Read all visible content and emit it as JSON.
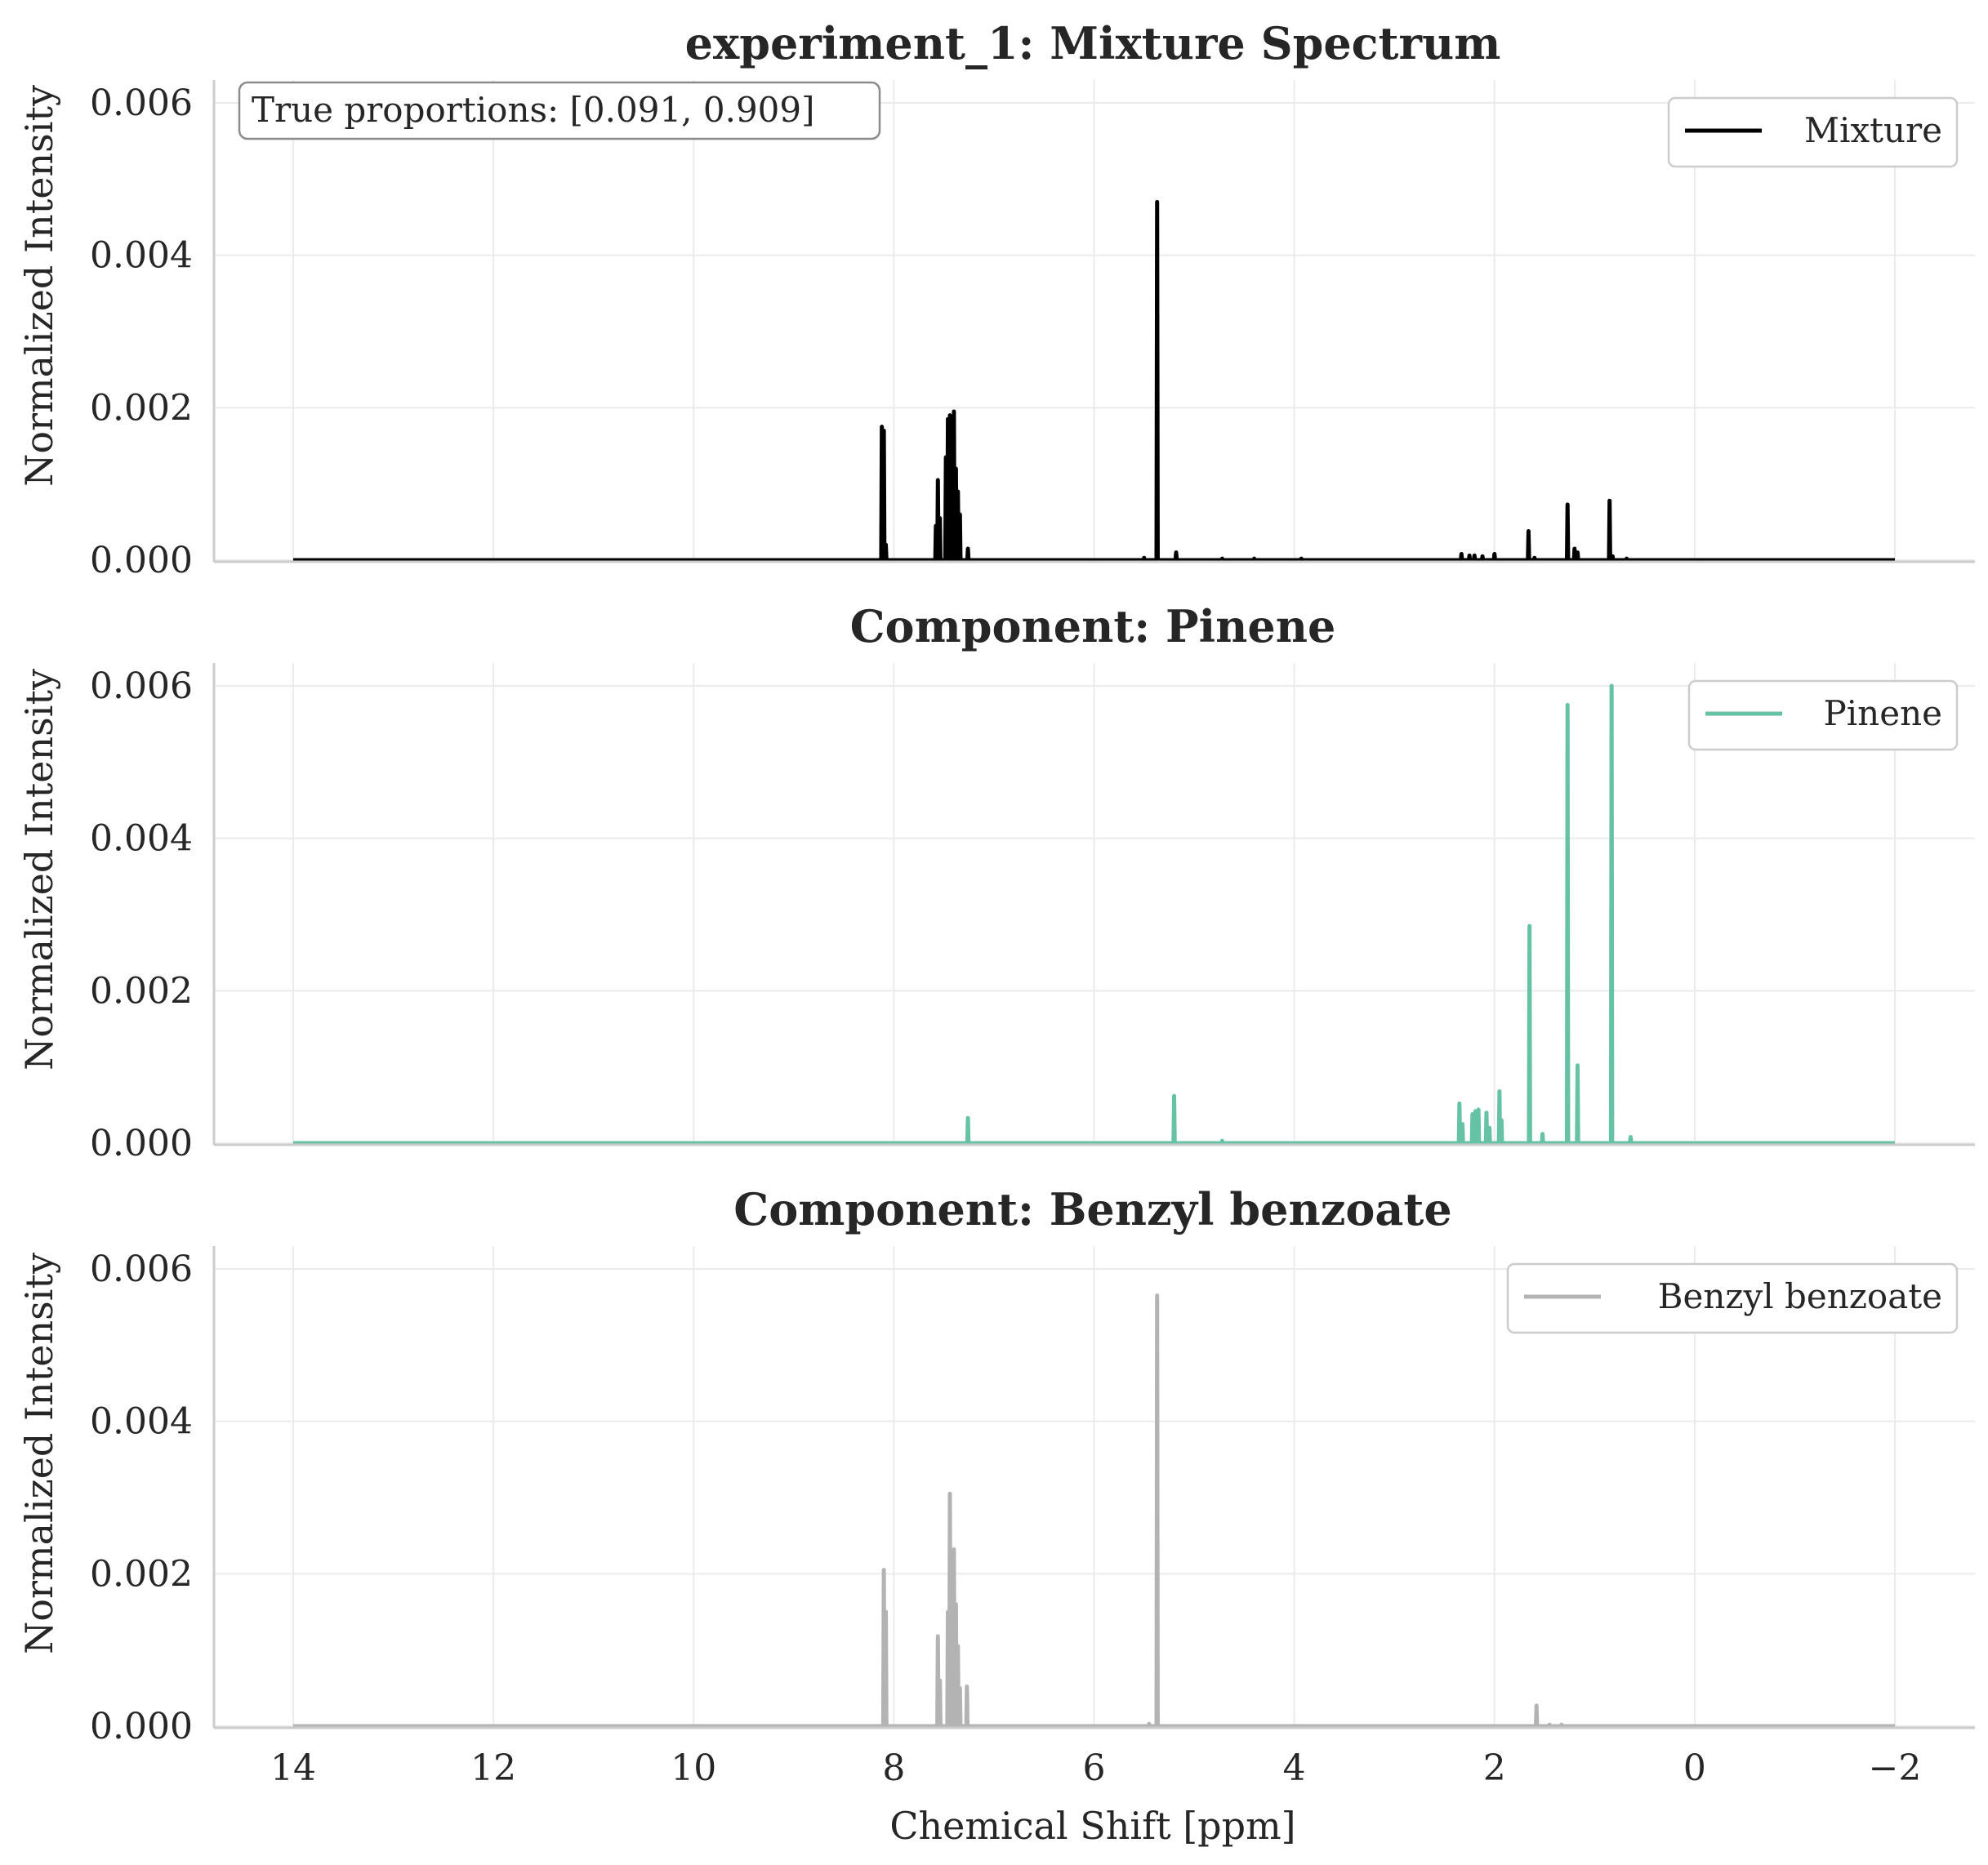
{
  "chart_data": [
    {
      "type": "line",
      "title": "experiment_1: Mixture Spectrum",
      "xlabel": "",
      "ylabel": "Normalized Intensity",
      "xlim": [
        14,
        -2
      ],
      "ylim": [
        0,
        0.0063
      ],
      "yticks": [
        "0.000",
        "0.002",
        "0.004",
        "0.006"
      ],
      "grid": true,
      "legend_position": "upper right",
      "annotation": "True proportions: [0.091, 0.909]",
      "series": [
        {
          "name": "Mixture",
          "color": "#000000",
          "peaks": [
            [
              8.12,
              0.00175
            ],
            [
              8.1,
              0.0017
            ],
            [
              8.08,
              0.0002
            ],
            [
              7.58,
              0.00045
            ],
            [
              7.56,
              0.00105
            ],
            [
              7.54,
              0.00055
            ],
            [
              7.48,
              0.00135
            ],
            [
              7.46,
              0.00185
            ],
            [
              7.44,
              0.0019
            ],
            [
              7.42,
              0.0017
            ],
            [
              7.4,
              0.00195
            ],
            [
              7.38,
              0.0012
            ],
            [
              7.36,
              0.0009
            ],
            [
              7.34,
              0.0006
            ],
            [
              7.26,
              0.00015
            ],
            [
              5.5,
              3e-05
            ],
            [
              5.37,
              0.0047
            ],
            [
              5.18,
              0.0001
            ],
            [
              4.72,
              2e-05
            ],
            [
              4.4,
              2e-05
            ],
            [
              3.93,
              2e-05
            ],
            [
              2.33,
              8e-05
            ],
            [
              2.25,
              6e-05
            ],
            [
              2.2,
              6e-05
            ],
            [
              2.12,
              5e-05
            ],
            [
              2.0,
              8e-05
            ],
            [
              1.66,
              0.00038
            ],
            [
              1.6,
              3e-05
            ],
            [
              1.27,
              0.00073
            ],
            [
              1.2,
              0.00015
            ],
            [
              1.17,
              0.0001
            ],
            [
              0.85,
              0.00078
            ],
            [
              0.82,
              5e-05
            ],
            [
              0.68,
              2e-05
            ]
          ]
        }
      ]
    },
    {
      "type": "line",
      "title": "Component: Pinene",
      "xlabel": "",
      "ylabel": "Normalized Intensity",
      "xlim": [
        14,
        -2
      ],
      "ylim": [
        0,
        0.0063
      ],
      "yticks": [
        "0.000",
        "0.002",
        "0.004",
        "0.006"
      ],
      "grid": true,
      "legend_position": "upper right",
      "series": [
        {
          "name": "Pinene",
          "color": "#66c2a5",
          "peaks": [
            [
              7.26,
              0.00033
            ],
            [
              5.2,
              0.00062
            ],
            [
              4.72,
              3e-05
            ],
            [
              2.35,
              0.00052
            ],
            [
              2.32,
              0.00025
            ],
            [
              2.22,
              0.00038
            ],
            [
              2.19,
              0.00042
            ],
            [
              2.16,
              0.00044
            ],
            [
              2.08,
              0.0004
            ],
            [
              2.05,
              0.0002
            ],
            [
              1.95,
              0.00068
            ],
            [
              1.93,
              0.0003
            ],
            [
              1.65,
              0.00285
            ],
            [
              1.52,
              0.00012
            ],
            [
              1.27,
              0.00575
            ],
            [
              1.17,
              0.00102
            ],
            [
              0.83,
              0.006
            ],
            [
              0.64,
              8e-05
            ]
          ]
        }
      ]
    },
    {
      "type": "line",
      "title": "Component: Benzyl benzoate",
      "xlabel": "Chemical Shift [ppm]",
      "ylabel": "Normalized Intensity",
      "xlim": [
        14,
        -2
      ],
      "ylim": [
        0,
        0.0063
      ],
      "xticks": [
        "14",
        "12",
        "10",
        "8",
        "6",
        "4",
        "2",
        "0",
        "−2"
      ],
      "yticks": [
        "0.000",
        "0.002",
        "0.004",
        "0.006"
      ],
      "grid": true,
      "legend_position": "upper right",
      "series": [
        {
          "name": "Benzyl benzoate",
          "color": "#b3b3b3",
          "peaks": [
            [
              8.1,
              0.00205
            ],
            [
              8.08,
              0.0015
            ],
            [
              7.56,
              0.00118
            ],
            [
              7.54,
              0.0006
            ],
            [
              7.46,
              0.0015
            ],
            [
              7.44,
              0.00305
            ],
            [
              7.42,
              0.002
            ],
            [
              7.4,
              0.00232
            ],
            [
              7.38,
              0.0016
            ],
            [
              7.36,
              0.00105
            ],
            [
              7.34,
              0.0005
            ],
            [
              7.27,
              0.00052
            ],
            [
              5.37,
              0.00565
            ],
            [
              5.45,
              3e-05
            ],
            [
              1.58,
              0.00027
            ],
            [
              1.45,
              2e-05
            ],
            [
              1.33,
              2e-05
            ]
          ]
        }
      ]
    }
  ]
}
